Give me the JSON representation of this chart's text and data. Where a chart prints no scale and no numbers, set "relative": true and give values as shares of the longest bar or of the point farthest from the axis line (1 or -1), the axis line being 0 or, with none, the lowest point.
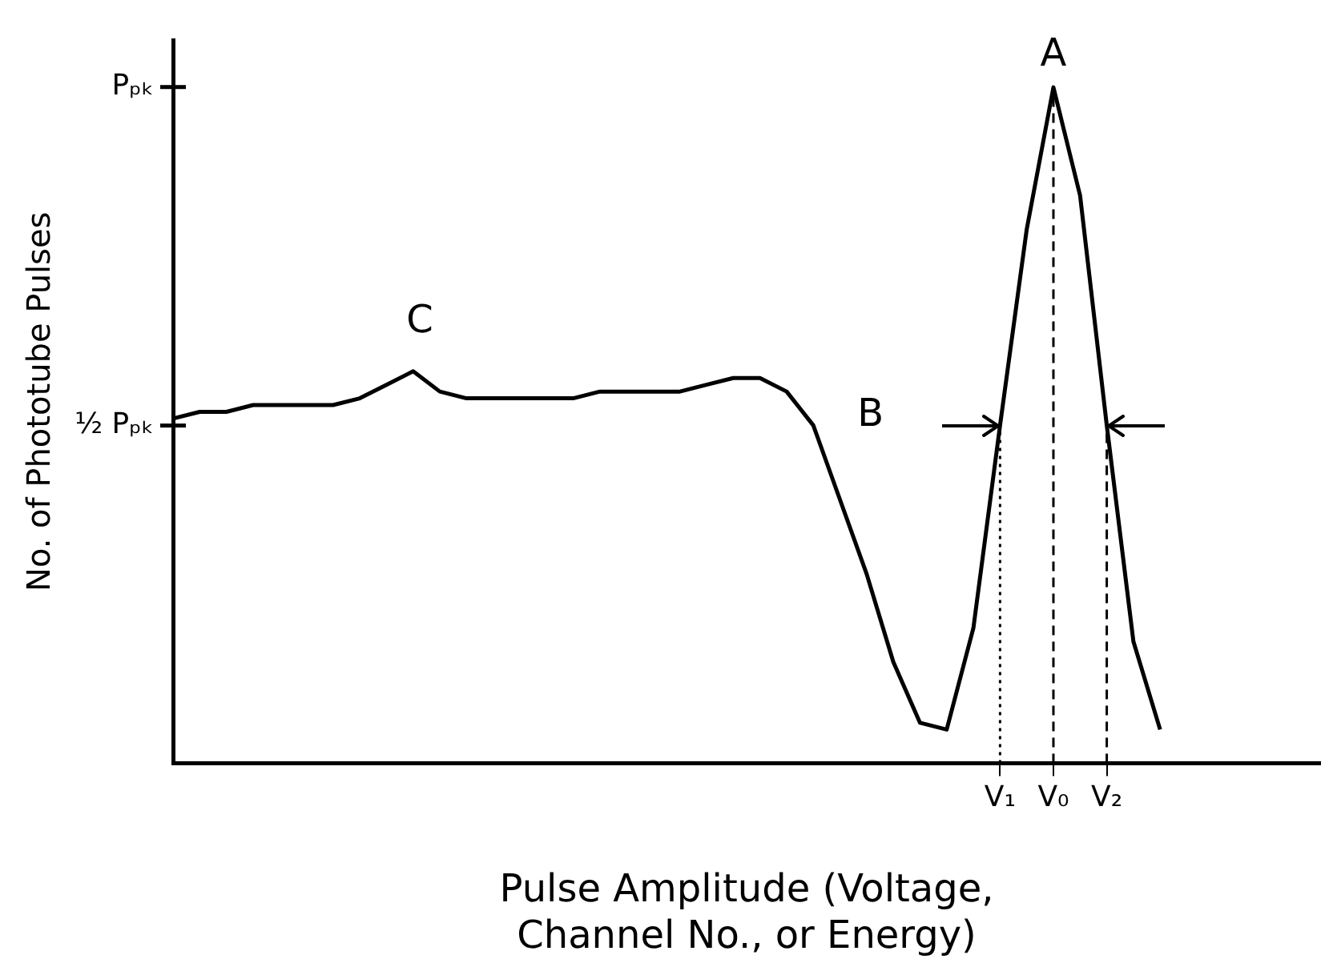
{
  "chart_data": {
    "type": "line",
    "relative": true,
    "xlabel": "Pulse Amplitude (Voltage,\nChannel No., or Energy)",
    "ylabel": "No. of Phototube Pulses",
    "categories": [
      null,
      null,
      null,
      null,
      null,
      null,
      null,
      null,
      null,
      null,
      null,
      null,
      null,
      null,
      null,
      null,
      null,
      null,
      null,
      null,
      null,
      null,
      null,
      null,
      null,
      null,
      null,
      null,
      null,
      null,
      null,
      "V₁",
      null,
      "V₀",
      null,
      "V₂",
      null,
      null,
      null,
      null,
      null,
      null,
      null,
      null
    ],
    "series": [
      {
        "color": "#000000",
        "values": [
          0.51,
          0.52,
          0.52,
          0.53,
          0.53,
          0.53,
          0.53,
          0.54,
          0.56,
          0.58,
          0.55,
          0.54,
          0.54,
          0.54,
          0.54,
          0.54,
          0.55,
          0.55,
          0.55,
          0.55,
          0.56,
          0.57,
          0.57,
          0.55,
          0.5,
          0.39,
          0.28,
          0.15,
          0.06,
          0.05,
          0.2,
          0.5,
          0.79,
          1,
          0.84,
          0.5,
          0.18,
          0.05,
          null,
          null,
          null,
          null,
          null,
          null
        ]
      }
    ],
    "ref_lines": [
      {
        "axis": "x",
        "value": "V₁",
        "line_style": "dotted"
      },
      {
        "axis": "x",
        "value": "V₀",
        "line_style": "dashed"
      },
      {
        "axis": "x",
        "value": "V₂",
        "line_style": "dashed"
      }
    ],
    "annotations": [
      {
        "text": "A",
        "x": "V₀",
        "y": 1
      },
      "B",
      "C",
      "Pₚₖ",
      "½ Pₚₖ"
    ],
    "grid": false,
    "legend": false,
    "marker": "none",
    "line_style": "solid"
  }
}
